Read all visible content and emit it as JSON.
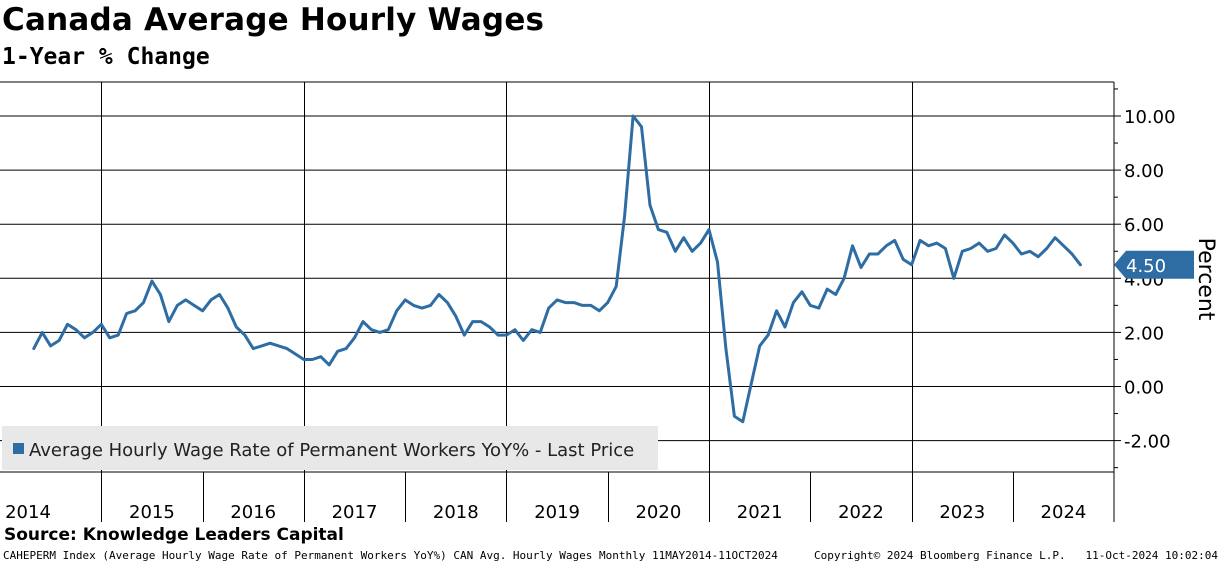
{
  "header": {
    "title": "Canada Average Hourly Wages",
    "subtitle": "1-Year % Change"
  },
  "source": "Source: Knowledge Leaders Capital",
  "footer": {
    "left": "CAHEPERM Index (Average Hourly Wage Rate of Permanent Workers YoY%) CAN Avg. Hourly Wages  Monthly 11MAY2014-11OCT2024",
    "middle": "Copyright© 2024 Bloomberg Finance L.P.",
    "right": "11-Oct-2024 10:02:04"
  },
  "colors": {
    "line": "#2e6da4",
    "last_badge": "#2e6da4",
    "grid": "#000000"
  },
  "chart_data": {
    "type": "line",
    "title": "Canada Average Hourly Wages",
    "subtitle": "1-Year % Change",
    "ylabel": "Percent",
    "ylim": [
      -3.2,
      11.2
    ],
    "yticks": [
      -2.0,
      0.0,
      2.0,
      4.0,
      6.0,
      8.0,
      10.0
    ],
    "ytick_labels": [
      "-2.00",
      "0.00",
      "2.00",
      "4.00",
      "6.00",
      "8.00",
      "10.00"
    ],
    "y_axis_side": "right",
    "x_range": [
      "2014-05",
      "2024-10"
    ],
    "xtick_labels": [
      "2014",
      "2015",
      "2016",
      "2017",
      "2018",
      "2019",
      "2020",
      "2021",
      "2022",
      "2023",
      "2024"
    ],
    "grid": true,
    "legend": {
      "placement": "bottom-left",
      "entries": [
        "Average Hourly Wage Rate of Permanent Workers YoY% - Last Price"
      ]
    },
    "last_value_label": "4.50",
    "series": [
      {
        "name": "Average Hourly Wage Rate of Permanent Workers YoY% - Last Price",
        "x": [
          "2014-05",
          "2014-06",
          "2014-07",
          "2014-08",
          "2014-09",
          "2014-10",
          "2014-11",
          "2014-12",
          "2015-01",
          "2015-02",
          "2015-03",
          "2015-04",
          "2015-05",
          "2015-06",
          "2015-07",
          "2015-08",
          "2015-09",
          "2015-10",
          "2015-11",
          "2015-12",
          "2016-01",
          "2016-02",
          "2016-03",
          "2016-04",
          "2016-05",
          "2016-06",
          "2016-07",
          "2016-08",
          "2016-09",
          "2016-10",
          "2016-11",
          "2016-12",
          "2017-01",
          "2017-02",
          "2017-03",
          "2017-04",
          "2017-05",
          "2017-06",
          "2017-07",
          "2017-08",
          "2017-09",
          "2017-10",
          "2017-11",
          "2017-12",
          "2018-01",
          "2018-02",
          "2018-03",
          "2018-04",
          "2018-05",
          "2018-06",
          "2018-07",
          "2018-08",
          "2018-09",
          "2018-10",
          "2018-11",
          "2018-12",
          "2019-01",
          "2019-02",
          "2019-03",
          "2019-04",
          "2019-05",
          "2019-06",
          "2019-07",
          "2019-08",
          "2019-09",
          "2019-10",
          "2019-11",
          "2019-12",
          "2020-01",
          "2020-02",
          "2020-03",
          "2020-04",
          "2020-05",
          "2020-06",
          "2020-07",
          "2020-08",
          "2020-09",
          "2020-10",
          "2020-11",
          "2020-12",
          "2021-01",
          "2021-02",
          "2021-03",
          "2021-04",
          "2021-05",
          "2021-06",
          "2021-07",
          "2021-08",
          "2021-09",
          "2021-10",
          "2021-11",
          "2021-12",
          "2022-01",
          "2022-02",
          "2022-03",
          "2022-04",
          "2022-05",
          "2022-06",
          "2022-07",
          "2022-08",
          "2022-09",
          "2022-10",
          "2022-11",
          "2022-12",
          "2023-01",
          "2023-02",
          "2023-03",
          "2023-04",
          "2023-05",
          "2023-06",
          "2023-07",
          "2023-08",
          "2023-09",
          "2023-10",
          "2023-11",
          "2023-12",
          "2024-01",
          "2024-02",
          "2024-03",
          "2024-04",
          "2024-05",
          "2024-06",
          "2024-07",
          "2024-08",
          "2024-09"
        ],
        "values": [
          1.4,
          2.0,
          1.5,
          1.7,
          2.3,
          2.1,
          1.8,
          2.0,
          2.3,
          1.8,
          1.9,
          2.7,
          2.8,
          3.1,
          3.9,
          3.4,
          2.4,
          3.0,
          3.2,
          3.0,
          2.8,
          3.2,
          3.4,
          2.9,
          2.2,
          1.9,
          1.4,
          1.5,
          1.6,
          1.5,
          1.4,
          1.2,
          1.0,
          1.0,
          1.1,
          0.8,
          1.3,
          1.4,
          1.8,
          2.4,
          2.1,
          2.0,
          2.1,
          2.8,
          3.2,
          3.0,
          2.9,
          3.0,
          3.4,
          3.1,
          2.6,
          1.9,
          2.4,
          2.4,
          2.2,
          1.9,
          1.9,
          2.1,
          1.7,
          2.1,
          2.0,
          2.9,
          3.2,
          3.1,
          3.1,
          3.0,
          3.0,
          2.8,
          3.1,
          3.7,
          6.3,
          10.0,
          9.6,
          6.7,
          5.8,
          5.7,
          5.0,
          5.5,
          5.0,
          5.3,
          5.8,
          4.6,
          1.4,
          -1.1,
          -1.3,
          0.1,
          1.5,
          1.9,
          2.8,
          2.2,
          3.1,
          3.5,
          3.0,
          2.9,
          3.6,
          3.4,
          4.0,
          5.2,
          4.4,
          4.9,
          4.9,
          5.2,
          5.4,
          4.7,
          4.5,
          5.4,
          5.2,
          5.3,
          5.1,
          4.0,
          5.0,
          5.1,
          5.3,
          5.0,
          5.1,
          5.6,
          5.3,
          4.9,
          5.0,
          4.8,
          5.1,
          5.5,
          5.2,
          4.9,
          4.5
        ]
      }
    ]
  }
}
